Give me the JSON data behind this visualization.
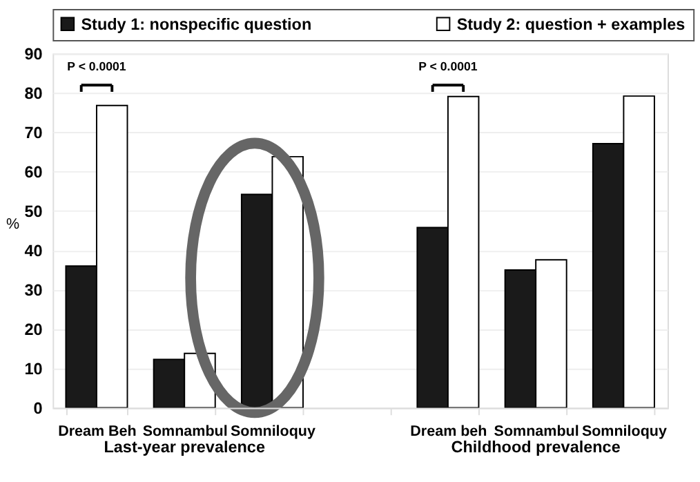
{
  "chart_data": {
    "type": "bar",
    "ylabel": "%",
    "categories": [
      "Dream Beh",
      "Somnambul",
      "Somniloquy",
      null,
      "Dream beh",
      "Somnambul",
      "Somniloquy"
    ],
    "series": [
      {
        "name": "Study 1: nonspecific question",
        "color": "#1a1a1a",
        "values": [
          36,
          12.3,
          54.2,
          null,
          45.8,
          35,
          67.1
        ]
      },
      {
        "name": "Study 2: question + examples",
        "color": "#ffffff",
        "values": [
          76.8,
          13.8,
          63.8,
          null,
          79.1,
          37.6,
          79.2
        ]
      }
    ],
    "ylim": [
      0,
      90
    ],
    "yticks": [
      0,
      10,
      20,
      30,
      40,
      50,
      60,
      70,
      80,
      90
    ],
    "grid": "y",
    "legend": "top",
    "annotations": [
      "P < 0.0001",
      "P < 0.0001",
      "Last-year prevalence",
      "Childhood prevalence"
    ]
  }
}
